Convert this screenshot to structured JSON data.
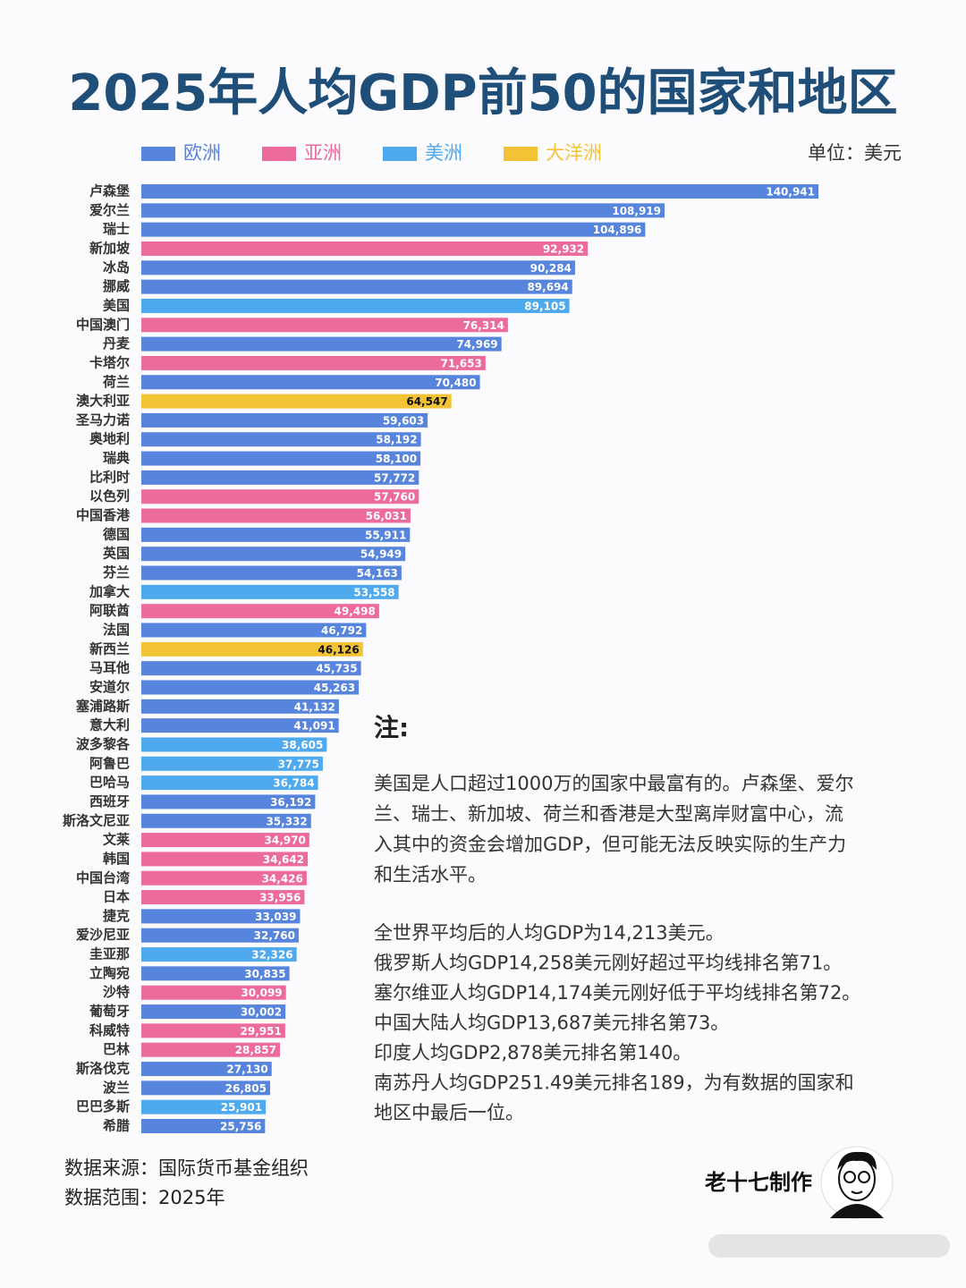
{
  "chart_data": {
    "type": "hbar",
    "title": "2025年人均GDP前50的国家和地区",
    "unit": "单位：美元",
    "legend": [
      {
        "name": "欧洲",
        "color": "#5784dc"
      },
      {
        "name": "亚洲",
        "color": "#ec6a9c"
      },
      {
        "name": "美洲",
        "color": "#4ea9ee"
      },
      {
        "name": "大洋洲",
        "color": "#f3c336"
      }
    ],
    "categories": [
      "卢森堡",
      "爱尔兰",
      "瑞士",
      "新加坡",
      "冰岛",
      "挪威",
      "美国",
      "中国澳门",
      "丹麦",
      "卡塔尔",
      "荷兰",
      "澳大利亚",
      "圣马力诺",
      "奥地利",
      "瑞典",
      "比利时",
      "以色列",
      "中国香港",
      "德国",
      "英国",
      "芬兰",
      "加拿大",
      "阿联酋",
      "法国",
      "新西兰",
      "马耳他",
      "安道尔",
      "塞浦路斯",
      "意大利",
      "波多黎各",
      "阿鲁巴",
      "巴哈马",
      "西班牙",
      "斯洛文尼亚",
      "文莱",
      "韩国",
      "中国台湾",
      "日本",
      "捷克",
      "爱沙尼亚",
      "圭亚那",
      "立陶宛",
      "沙特",
      "葡萄牙",
      "科威特",
      "巴林",
      "斯洛伐克",
      "波兰",
      "巴巴多斯",
      "希腊"
    ],
    "values": [
      140941,
      108919,
      104896,
      92932,
      90284,
      89694,
      89105,
      76314,
      74969,
      71653,
      70480,
      64547,
      59603,
      58192,
      58100,
      57772,
      57760,
      56031,
      55911,
      54949,
      54163,
      53558,
      49498,
      46792,
      46126,
      45735,
      45263,
      41132,
      41091,
      38605,
      37775,
      36784,
      36192,
      35332,
      34970,
      34642,
      34426,
      33956,
      33039,
      32760,
      32326,
      30835,
      30099,
      30002,
      29951,
      28857,
      27130,
      26805,
      25901,
      25756
    ],
    "value_labels": [
      "140,941",
      "108,919",
      "104,896",
      "92,932",
      "90,284",
      "89,694",
      "89,105",
      "76,314",
      "74,969",
      "71,653",
      "70,480",
      "64,547",
      "59,603",
      "58,192",
      "58,100",
      "57,772",
      "57,760",
      "56,031",
      "55,911",
      "54,949",
      "54,163",
      "53,558",
      "49,498",
      "46,792",
      "46,126",
      "45,735",
      "45,263",
      "41,132",
      "41,091",
      "38,605",
      "37,775",
      "36,784",
      "36,192",
      "35,332",
      "34,970",
      "34,642",
      "34,426",
      "33,956",
      "33,039",
      "32,760",
      "32,326",
      "30,835",
      "30,099",
      "30,002",
      "29,951",
      "28,857",
      "27,130",
      "26,805",
      "25,901",
      "25,756"
    ],
    "colors": [
      "#5784dc",
      "#5784dc",
      "#5784dc",
      "#ec6a9c",
      "#5784dc",
      "#5784dc",
      "#4ea9ee",
      "#ec6a9c",
      "#5784dc",
      "#ec6a9c",
      "#5784dc",
      "#f3c336",
      "#5784dc",
      "#5784dc",
      "#5784dc",
      "#5784dc",
      "#ec6a9c",
      "#ec6a9c",
      "#5784dc",
      "#5784dc",
      "#5784dc",
      "#4ea9ee",
      "#ec6a9c",
      "#5784dc",
      "#f3c336",
      "#5784dc",
      "#5784dc",
      "#5784dc",
      "#5784dc",
      "#4ea9ee",
      "#4ea9ee",
      "#4ea9ee",
      "#5784dc",
      "#5784dc",
      "#ec6a9c",
      "#ec6a9c",
      "#ec6a9c",
      "#ec6a9c",
      "#5784dc",
      "#5784dc",
      "#4ea9ee",
      "#5784dc",
      "#ec6a9c",
      "#5784dc",
      "#ec6a9c",
      "#ec6a9c",
      "#5784dc",
      "#5784dc",
      "#4ea9ee",
      "#5784dc"
    ],
    "note_title": "注:",
    "note_lines_1": [
      "美国是人口超过1000万的国家中最富有的。卢森堡、爱尔",
      "兰、瑞士、新加坡、荷兰和香港是大型离岸财富中心，流",
      "入其中的资金会增加GDP，但可能无法反映实际的生产力",
      "和生活水平。"
    ],
    "note_lines_2": [
      "全世界平均后的人均GDP为14,213美元。",
      "俄罗斯人均GDP14,258美元刚好超过平均线排名第71。",
      "塞尔维亚人均GDP14,174美元刚好低于平均线排名第72。",
      "中国大陆人均GDP13,687美元排名第73。",
      "印度人均GDP2,878美元排名第140。",
      "南苏丹人均GDP251.49美元排名189，为有数据的国家和",
      "地区中最后一位。"
    ],
    "source": "数据来源：国际货币基金组织",
    "range": "数据范围：2025年",
    "author": "老十七制作"
  }
}
